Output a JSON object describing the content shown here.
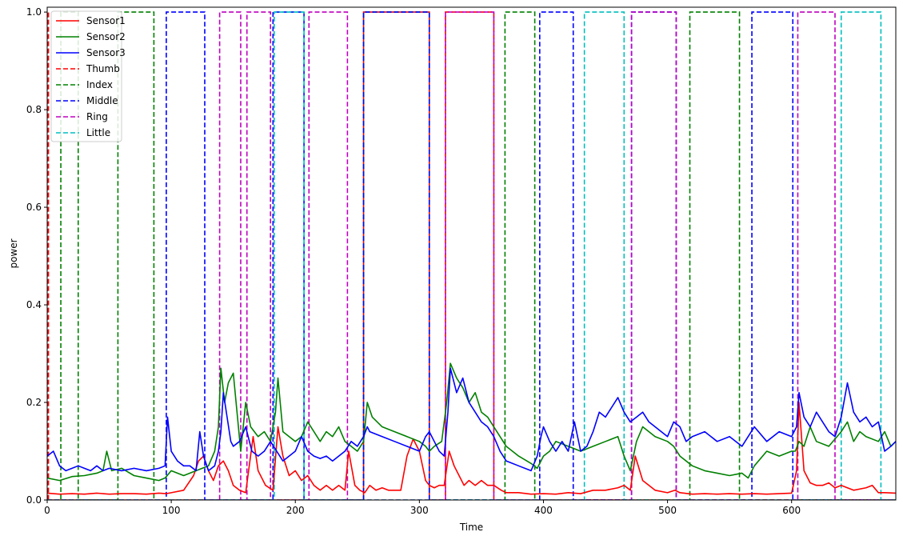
{
  "chart_data": {
    "type": "line",
    "title": "",
    "xlabel": "Time",
    "ylabel": "power",
    "xlim": [
      0,
      684
    ],
    "ylim": [
      0,
      1.01
    ],
    "xticks": [
      "0",
      "100",
      "200",
      "300",
      "400",
      "500",
      "600"
    ],
    "xtick_values": [
      0,
      100,
      200,
      300,
      400,
      500,
      600
    ],
    "yticks": [
      "0.0",
      "0.2",
      "0.4",
      "0.6",
      "0.8",
      "1.0"
    ],
    "ytick_values": [
      0,
      0.2,
      0.4,
      0.6,
      0.8,
      1.0
    ],
    "grid": false,
    "legend_position": "top-left",
    "series": [
      {
        "name": "Sensor1",
        "style": "solid",
        "color": "#ff0000",
        "x": [
          0,
          10,
          20,
          30,
          40,
          50,
          60,
          70,
          80,
          90,
          96,
          100,
          110,
          118,
          122,
          126,
          130,
          134,
          138,
          142,
          146,
          150,
          155,
          160,
          166,
          170,
          176,
          182,
          186,
          190,
          195,
          200,
          205,
          210,
          215,
          220,
          225,
          230,
          235,
          240,
          243,
          248,
          252,
          256,
          260,
          265,
          270,
          275,
          280,
          285,
          290,
          295,
          300,
          305,
          308,
          312,
          316,
          320,
          324,
          328,
          332,
          336,
          340,
          345,
          350,
          355,
          360,
          366,
          370,
          380,
          390,
          400,
          410,
          420,
          430,
          440,
          450,
          460,
          465,
          470,
          474,
          480,
          490,
          500,
          506,
          510,
          520,
          530,
          540,
          550,
          560,
          570,
          580,
          590,
          600,
          604,
          606,
          610,
          615,
          620,
          625,
          630,
          635,
          640,
          650,
          660,
          665,
          670,
          675,
          684
        ],
        "values": [
          0.014,
          0.012,
          0.013,
          0.012,
          0.014,
          0.012,
          0.013,
          0.013,
          0.012,
          0.014,
          0.013,
          0.015,
          0.02,
          0.05,
          0.08,
          0.09,
          0.06,
          0.04,
          0.07,
          0.08,
          0.06,
          0.03,
          0.02,
          0.015,
          0.13,
          0.06,
          0.03,
          0.02,
          0.15,
          0.09,
          0.05,
          0.06,
          0.04,
          0.05,
          0.03,
          0.02,
          0.03,
          0.02,
          0.03,
          0.02,
          0.1,
          0.03,
          0.02,
          0.015,
          0.03,
          0.02,
          0.025,
          0.02,
          0.02,
          0.02,
          0.09,
          0.125,
          0.1,
          0.04,
          0.03,
          0.025,
          0.03,
          0.03,
          0.1,
          0.07,
          0.05,
          0.03,
          0.04,
          0.03,
          0.04,
          0.03,
          0.03,
          0.02,
          0.015,
          0.015,
          0.012,
          0.013,
          0.012,
          0.015,
          0.013,
          0.02,
          0.02,
          0.025,
          0.03,
          0.02,
          0.09,
          0.04,
          0.02,
          0.015,
          0.02,
          0.015,
          0.012,
          0.013,
          0.012,
          0.013,
          0.012,
          0.013,
          0.012,
          0.013,
          0.014,
          0.06,
          0.2,
          0.06,
          0.035,
          0.03,
          0.03,
          0.035,
          0.025,
          0.03,
          0.02,
          0.025,
          0.03,
          0.015,
          0.015,
          0.014
        ]
      },
      {
        "name": "Sensor2",
        "style": "solid",
        "color": "#008000",
        "x": [
          0,
          10,
          20,
          30,
          40,
          45,
          48,
          52,
          60,
          70,
          80,
          90,
          95,
          100,
          110,
          120,
          130,
          135,
          138,
          140,
          143,
          146,
          150,
          153,
          156,
          160,
          164,
          170,
          175,
          180,
          184,
          186,
          190,
          195,
          200,
          205,
          210,
          215,
          220,
          225,
          230,
          235,
          240,
          245,
          250,
          255,
          258,
          262,
          270,
          280,
          290,
          300,
          305,
          308,
          312,
          318,
          322,
          325,
          330,
          335,
          340,
          345,
          350,
          355,
          360,
          365,
          370,
          375,
          380,
          390,
          395,
          400,
          405,
          410,
          420,
          430,
          440,
          450,
          460,
          465,
          470,
          475,
          480,
          490,
          500,
          505,
          510,
          520,
          530,
          540,
          550,
          560,
          565,
          570,
          580,
          590,
          600,
          603,
          606,
          610,
          615,
          620,
          630,
          640,
          645,
          650,
          655,
          660,
          670,
          675,
          680,
          684
        ],
        "values": [
          0.045,
          0.04,
          0.048,
          0.05,
          0.055,
          0.06,
          0.1,
          0.06,
          0.065,
          0.05,
          0.045,
          0.04,
          0.045,
          0.06,
          0.05,
          0.06,
          0.07,
          0.1,
          0.15,
          0.27,
          0.2,
          0.24,
          0.26,
          0.18,
          0.1,
          0.2,
          0.15,
          0.13,
          0.14,
          0.12,
          0.18,
          0.25,
          0.14,
          0.13,
          0.12,
          0.13,
          0.16,
          0.14,
          0.12,
          0.14,
          0.13,
          0.15,
          0.12,
          0.11,
          0.1,
          0.12,
          0.2,
          0.17,
          0.15,
          0.14,
          0.13,
          0.12,
          0.11,
          0.1,
          0.11,
          0.12,
          0.2,
          0.28,
          0.25,
          0.23,
          0.2,
          0.22,
          0.18,
          0.17,
          0.15,
          0.13,
          0.11,
          0.1,
          0.09,
          0.075,
          0.065,
          0.09,
          0.1,
          0.12,
          0.11,
          0.1,
          0.11,
          0.12,
          0.13,
          0.09,
          0.06,
          0.12,
          0.15,
          0.13,
          0.12,
          0.11,
          0.09,
          0.07,
          0.06,
          0.055,
          0.05,
          0.055,
          0.045,
          0.07,
          0.1,
          0.09,
          0.1,
          0.1,
          0.12,
          0.11,
          0.15,
          0.12,
          0.11,
          0.14,
          0.16,
          0.12,
          0.14,
          0.13,
          0.12,
          0.14,
          0.11,
          0.12
        ]
      },
      {
        "name": "Sensor3",
        "style": "solid",
        "color": "#0000ff",
        "x": [
          0,
          5,
          10,
          15,
          20,
          25,
          30,
          35,
          40,
          45,
          50,
          60,
          70,
          80,
          90,
          95,
          97,
          100,
          105,
          110,
          115,
          120,
          123,
          126,
          130,
          135,
          138,
          140,
          142,
          145,
          148,
          150,
          155,
          160,
          165,
          170,
          175,
          180,
          185,
          190,
          195,
          200,
          205,
          210,
          215,
          220,
          225,
          230,
          235,
          240,
          245,
          250,
          255,
          258,
          260,
          270,
          280,
          290,
          300,
          305,
          308,
          312,
          316,
          320,
          323,
          325,
          330,
          335,
          340,
          345,
          350,
          355,
          360,
          365,
          370,
          380,
          390,
          395,
          398,
          400,
          405,
          410,
          415,
          420,
          425,
          430,
          435,
          440,
          445,
          450,
          455,
          460,
          465,
          470,
          475,
          480,
          485,
          490,
          495,
          500,
          505,
          510,
          515,
          520,
          530,
          540,
          550,
          560,
          565,
          570,
          580,
          590,
          600,
          604,
          606,
          610,
          615,
          620,
          625,
          630,
          635,
          640,
          645,
          650,
          655,
          660,
          665,
          670,
          675,
          680,
          684
        ],
        "values": [
          0.09,
          0.1,
          0.07,
          0.06,
          0.065,
          0.07,
          0.065,
          0.06,
          0.07,
          0.06,
          0.065,
          0.06,
          0.065,
          0.06,
          0.065,
          0.07,
          0.17,
          0.1,
          0.08,
          0.07,
          0.07,
          0.06,
          0.14,
          0.09,
          0.06,
          0.07,
          0.1,
          0.14,
          0.22,
          0.17,
          0.12,
          0.11,
          0.12,
          0.15,
          0.1,
          0.09,
          0.1,
          0.12,
          0.1,
          0.08,
          0.09,
          0.1,
          0.13,
          0.1,
          0.09,
          0.085,
          0.09,
          0.08,
          0.09,
          0.1,
          0.12,
          0.11,
          0.13,
          0.15,
          0.14,
          0.13,
          0.12,
          0.11,
          0.1,
          0.13,
          0.14,
          0.12,
          0.1,
          0.09,
          0.18,
          0.27,
          0.22,
          0.25,
          0.2,
          0.18,
          0.16,
          0.15,
          0.13,
          0.1,
          0.08,
          0.07,
          0.06,
          0.09,
          0.13,
          0.15,
          0.12,
          0.1,
          0.12,
          0.1,
          0.16,
          0.1,
          0.11,
          0.14,
          0.18,
          0.17,
          0.19,
          0.21,
          0.18,
          0.16,
          0.17,
          0.18,
          0.16,
          0.15,
          0.14,
          0.13,
          0.16,
          0.15,
          0.12,
          0.13,
          0.14,
          0.12,
          0.13,
          0.11,
          0.13,
          0.15,
          0.12,
          0.14,
          0.13,
          0.15,
          0.22,
          0.17,
          0.15,
          0.18,
          0.16,
          0.14,
          0.13,
          0.17,
          0.24,
          0.18,
          0.16,
          0.17,
          0.15,
          0.16,
          0.1,
          0.11,
          0.12
        ]
      },
      {
        "name": "Thumb",
        "style": "dashed",
        "color": "#ff0000",
        "on_intervals": [
          [
            0,
            1
          ],
          [
            255,
            308
          ],
          [
            321,
            360
          ]
        ]
      },
      {
        "name": "Index",
        "style": "dashed",
        "color": "#008000",
        "on_intervals": [
          [
            11,
            25
          ],
          [
            57,
            86
          ],
          [
            255,
            308
          ],
          [
            369,
            393
          ],
          [
            518,
            558
          ]
        ]
      },
      {
        "name": "Middle",
        "style": "dashed",
        "color": "#0000ff",
        "on_intervals": [
          [
            96,
            127
          ],
          [
            182,
            207
          ],
          [
            255,
            308
          ],
          [
            397,
            424
          ],
          [
            471,
            507
          ],
          [
            568,
            601
          ]
        ]
      },
      {
        "name": "Ring",
        "style": "dashed",
        "color": "#bf00bf",
        "on_intervals": [
          [
            139,
            156
          ],
          [
            161,
            180
          ],
          [
            211,
            242
          ],
          [
            321,
            360
          ],
          [
            471,
            507
          ],
          [
            605,
            635
          ]
        ]
      },
      {
        "name": "Little",
        "style": "dashed",
        "color": "#00bfbf",
        "on_intervals": [
          [
            183,
            207
          ],
          [
            433,
            465
          ],
          [
            640,
            672
          ]
        ]
      }
    ]
  }
}
